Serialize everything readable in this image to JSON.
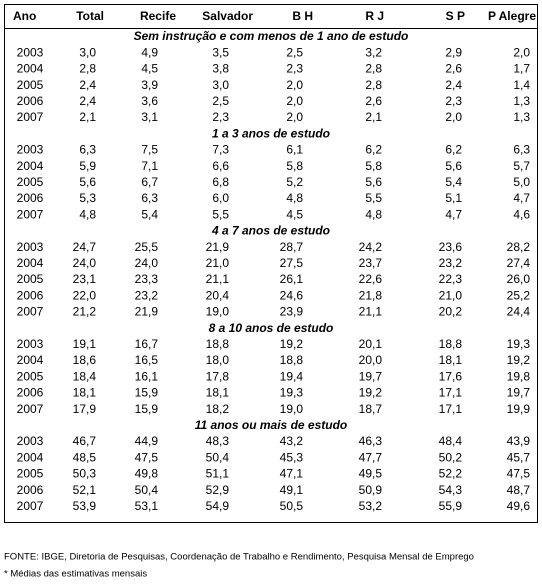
{
  "table": {
    "header": [
      "Ano",
      "Total",
      "Recife",
      "Salvador",
      "B H",
      "R J",
      "S P",
      "P Alegre"
    ],
    "sections": [
      {
        "title": "Sem instrução e com menos de 1 ano de estudo",
        "rows": [
          [
            "2003",
            "3,0",
            "4,9",
            "3,5",
            "2,5",
            "3,2",
            "2,9",
            "2,0"
          ],
          [
            "2004",
            "2,8",
            "4,5",
            "3,8",
            "2,3",
            "2,8",
            "2,6",
            "1,7"
          ],
          [
            "2005",
            "2,4",
            "3,9",
            "3,0",
            "2,0",
            "2,8",
            "2,4",
            "1,4"
          ],
          [
            "2006",
            "2,4",
            "3,6",
            "2,5",
            "2,0",
            "2,6",
            "2,3",
            "1,3"
          ],
          [
            "2007",
            "2,1",
            "3,1",
            "2,3",
            "2,0",
            "2,1",
            "2,0",
            "1,3"
          ]
        ]
      },
      {
        "title": "1 a 3 anos de estudo",
        "rows": [
          [
            "2003",
            "6,3",
            "7,5",
            "7,3",
            "6,1",
            "6,2",
            "6,2",
            "6,3"
          ],
          [
            "2004",
            "5,9",
            "7,1",
            "6,6",
            "5,8",
            "5,8",
            "5,6",
            "5,7"
          ],
          [
            "2005",
            "5,6",
            "6,7",
            "6,8",
            "5,2",
            "5,6",
            "5,4",
            "5,0"
          ],
          [
            "2006",
            "5,3",
            "6,3",
            "6,0",
            "4,8",
            "5,5",
            "5,1",
            "4,7"
          ],
          [
            "2007",
            "4,8",
            "5,4",
            "5,5",
            "4,5",
            "4,8",
            "4,7",
            "4,6"
          ]
        ]
      },
      {
        "title": "4 a 7 anos de estudo",
        "rows": [
          [
            "2003",
            "24,7",
            "25,5",
            "21,9",
            "28,7",
            "24,2",
            "23,6",
            "28,2"
          ],
          [
            "2004",
            "24,0",
            "24,0",
            "21,0",
            "27,5",
            "23,7",
            "23,2",
            "27,4"
          ],
          [
            "2005",
            "23,1",
            "23,3",
            "21,1",
            "26,1",
            "22,6",
            "22,3",
            "26,0"
          ],
          [
            "2006",
            "22,0",
            "23,2",
            "20,4",
            "24,6",
            "21,8",
            "21,0",
            "25,2"
          ],
          [
            "2007",
            "21,2",
            "21,9",
            "19,0",
            "23,9",
            "21,1",
            "20,2",
            "24,4"
          ]
        ]
      },
      {
        "title": "8 a 10 anos de estudo",
        "rows": [
          [
            "2003",
            "19,1",
            "16,7",
            "18,8",
            "19,2",
            "20,1",
            "18,8",
            "19,3"
          ],
          [
            "2004",
            "18,6",
            "16,5",
            "18,0",
            "18,8",
            "20,0",
            "18,1",
            "19,2"
          ],
          [
            "2005",
            "18,4",
            "16,1",
            "17,8",
            "19,4",
            "19,7",
            "17,6",
            "19,8"
          ],
          [
            "2006",
            "18,1",
            "15,9",
            "18,1",
            "19,3",
            "19,2",
            "17,1",
            "19,7"
          ],
          [
            "2007",
            "17,9",
            "15,9",
            "18,2",
            "19,0",
            "18,7",
            "17,1",
            "19,9"
          ]
        ]
      },
      {
        "title": "11 anos ou mais  de estudo",
        "rows": [
          [
            "2003",
            "46,7",
            "44,9",
            "48,3",
            "43,2",
            "46,3",
            "48,4",
            "43,9"
          ],
          [
            "2004",
            "48,5",
            "47,5",
            "50,4",
            "45,3",
            "47,7",
            "50,2",
            "45,7"
          ],
          [
            "2005",
            "50,3",
            "49,8",
            "51,1",
            "47,1",
            "49,5",
            "52,2",
            "47,5"
          ],
          [
            "2006",
            "52,1",
            "50,4",
            "52,9",
            "49,1",
            "50,9",
            "54,3",
            "48,7"
          ],
          [
            "2007",
            "53,9",
            "53,1",
            "54,9",
            "50,5",
            "53,2",
            "55,9",
            "49,6"
          ]
        ]
      }
    ]
  },
  "footer": {
    "source": "FONTE: IBGE, Diretoria de Pesquisas, Coordenação de Trabalho e Rendimento, Pesquisa Mensal de Emprego",
    "note": "* Médias das estimativas mensais"
  }
}
